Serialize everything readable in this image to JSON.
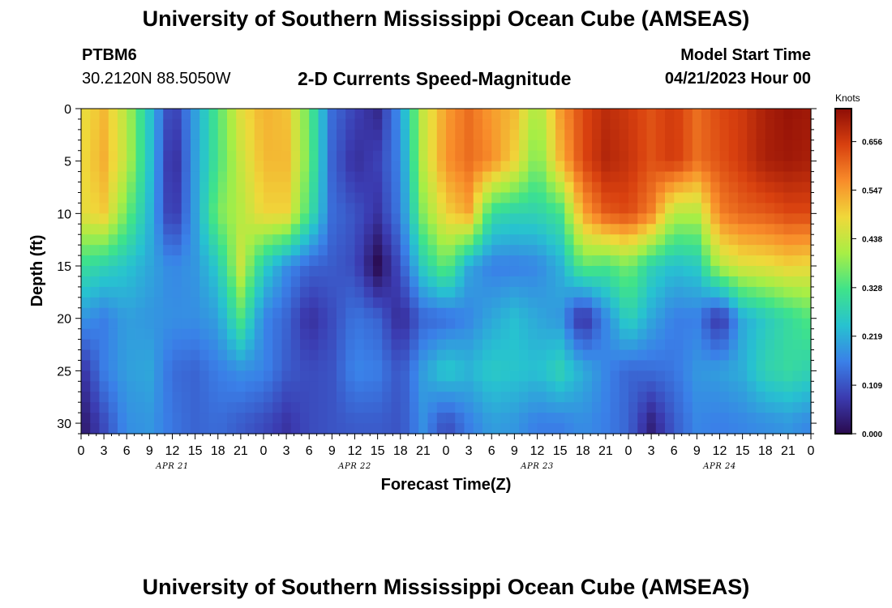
{
  "header": {
    "title": "University of Southern Mississippi Ocean Cube (AMSEAS)",
    "station": "PTBM6",
    "coords": "30.2120N  88.5050W",
    "variable": "2-D Currents Speed-Magnitude",
    "model_start_label": "Model Start Time",
    "model_start_value": "04/21/2023 Hour 00"
  },
  "footer": {
    "title": "University of Southern Mississippi Ocean Cube (AMSEAS)"
  },
  "chart_data": {
    "type": "heatmap",
    "title": "2-D Currents Speed-Magnitude",
    "xlabel": "Forecast Time(Z)",
    "ylabel": "Depth (ft)",
    "x_tick_labels": [
      "0",
      "3",
      "6",
      "9",
      "12",
      "15",
      "18",
      "21",
      "0",
      "3",
      "6",
      "9",
      "12",
      "15",
      "18",
      "21",
      "0",
      "3",
      "6",
      "9",
      "12",
      "15",
      "18",
      "21",
      "0",
      "3",
      "6",
      "9",
      "12",
      "15",
      "18",
      "21",
      "0"
    ],
    "x_day_labels": [
      "APR 21",
      "APR 22",
      "APR 23",
      "APR 24"
    ],
    "y_ticks": [
      0,
      5,
      10,
      15,
      20,
      25,
      30
    ],
    "ylim": [
      0,
      31
    ],
    "xlim_hours": [
      0,
      96
    ],
    "colorbar": {
      "unit": "Knots",
      "ticks": [
        "0.656",
        "0.547",
        "0.438",
        "0.328",
        "0.219",
        "0.109",
        "0.000"
      ],
      "range": [
        0,
        0.73
      ]
    },
    "colormap_stops": [
      "#2a0a4e",
      "#3b3bb0",
      "#3a80e8",
      "#27c2d0",
      "#3fe38a",
      "#a8ee45",
      "#f0d83a",
      "#f88c2a",
      "#d8400f",
      "#8e0d06"
    ],
    "depth_levels_ft": [
      0,
      5,
      10,
      15,
      20,
      25,
      30
    ],
    "time_hours": [
      0,
      3,
      6,
      9,
      12,
      15,
      18,
      21,
      24,
      27,
      30,
      33,
      36,
      39,
      42,
      45,
      48,
      51,
      54,
      57,
      60,
      63,
      66,
      69,
      72,
      75,
      78,
      81,
      84,
      87,
      90,
      93,
      96
    ],
    "speed_knots": [
      [
        0.47,
        0.52,
        0.42,
        0.25,
        0.07,
        0.2,
        0.34,
        0.47,
        0.53,
        0.51,
        0.35,
        0.14,
        0.09,
        0.05,
        0.19,
        0.44,
        0.55,
        0.6,
        0.55,
        0.52,
        0.4,
        0.55,
        0.64,
        0.68,
        0.66,
        0.63,
        0.66,
        0.6,
        0.64,
        0.66,
        0.7,
        0.72,
        0.71
      ],
      [
        0.48,
        0.53,
        0.43,
        0.25,
        0.04,
        0.2,
        0.33,
        0.44,
        0.52,
        0.52,
        0.36,
        0.13,
        0.06,
        0.09,
        0.17,
        0.43,
        0.56,
        0.6,
        0.57,
        0.49,
        0.36,
        0.52,
        0.64,
        0.69,
        0.67,
        0.63,
        0.66,
        0.6,
        0.63,
        0.66,
        0.7,
        0.71,
        0.7
      ],
      [
        0.47,
        0.5,
        0.36,
        0.23,
        0.06,
        0.2,
        0.37,
        0.42,
        0.49,
        0.49,
        0.32,
        0.14,
        0.11,
        0.07,
        0.16,
        0.38,
        0.49,
        0.54,
        0.3,
        0.28,
        0.28,
        0.32,
        0.54,
        0.62,
        0.64,
        0.58,
        0.42,
        0.42,
        0.58,
        0.61,
        0.62,
        0.64,
        0.64
      ],
      [
        0.31,
        0.28,
        0.25,
        0.21,
        0.17,
        0.19,
        0.26,
        0.44,
        0.27,
        0.18,
        0.13,
        0.12,
        0.1,
        0.0,
        0.11,
        0.27,
        0.36,
        0.21,
        0.16,
        0.16,
        0.17,
        0.22,
        0.35,
        0.33,
        0.37,
        0.28,
        0.24,
        0.26,
        0.42,
        0.46,
        0.47,
        0.49,
        0.48
      ],
      [
        0.19,
        0.16,
        0.2,
        0.19,
        0.18,
        0.18,
        0.2,
        0.33,
        0.17,
        0.13,
        0.06,
        0.1,
        0.15,
        0.13,
        0.05,
        0.13,
        0.14,
        0.17,
        0.21,
        0.24,
        0.21,
        0.19,
        0.05,
        0.17,
        0.28,
        0.21,
        0.16,
        0.16,
        0.06,
        0.21,
        0.26,
        0.3,
        0.34
      ],
      [
        0.06,
        0.16,
        0.2,
        0.21,
        0.14,
        0.13,
        0.16,
        0.18,
        0.17,
        0.12,
        0.1,
        0.11,
        0.17,
        0.16,
        0.11,
        0.2,
        0.26,
        0.23,
        0.26,
        0.25,
        0.24,
        0.28,
        0.22,
        0.17,
        0.13,
        0.14,
        0.15,
        0.19,
        0.2,
        0.22,
        0.28,
        0.3,
        0.28
      ],
      [
        0.02,
        0.1,
        0.18,
        0.19,
        0.15,
        0.13,
        0.14,
        0.12,
        0.1,
        0.07,
        0.1,
        0.11,
        0.12,
        0.12,
        0.11,
        0.18,
        0.1,
        0.16,
        0.2,
        0.19,
        0.16,
        0.16,
        0.18,
        0.16,
        0.13,
        0.04,
        0.12,
        0.17,
        0.16,
        0.17,
        0.18,
        0.19,
        0.17
      ]
    ]
  }
}
